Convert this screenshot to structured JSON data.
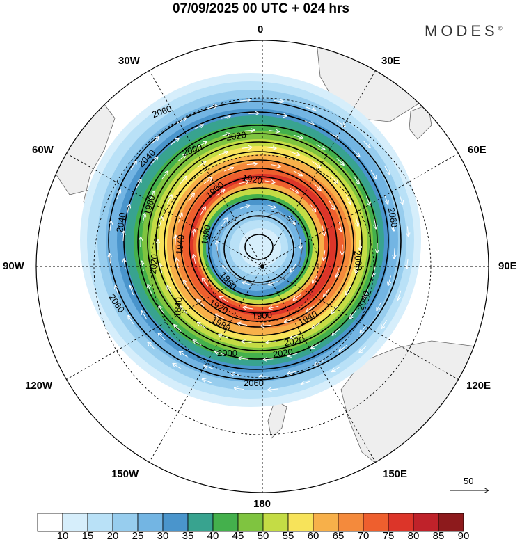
{
  "header": {
    "title": "07/09/2025  00 UTC  + 024 hrs",
    "brand": "MODES"
  },
  "map": {
    "projection": "south polar stereographic",
    "lon_labels": {
      "top": "0",
      "top_left": "30W",
      "top_right": "30E",
      "upper_left": "60W",
      "upper_right": "60E",
      "left": "90W",
      "right": "90E",
      "lower_left": "120W",
      "lower_right": "120E",
      "bottom_left": "150W",
      "bottom_right": "150E",
      "bottom": "180"
    },
    "contour_labels": [
      "2060",
      "2020",
      "2040",
      "2000",
      "1920",
      "1980",
      "1900",
      "2040",
      "1880",
      "1940",
      "1860",
      "2060",
      "2020",
      "2000",
      "1840",
      "2040",
      "2020",
      "1980",
      "1920",
      "1900",
      "1940",
      "2000",
      "2020",
      "2060",
      "2060"
    ]
  },
  "wind_reference": {
    "value": "50"
  },
  "colorbar": {
    "labels": [
      "10",
      "15",
      "20",
      "25",
      "30",
      "35",
      "40",
      "45",
      "50",
      "55",
      "60",
      "65",
      "70",
      "75",
      "80",
      "85",
      "90"
    ],
    "colors": [
      "#ffffff",
      "#d6eefb",
      "#b9e1f7",
      "#97cdee",
      "#73b5e3",
      "#4a95cc",
      "#38a38f",
      "#44b04c",
      "#7fc440",
      "#c4dc45",
      "#f7e35a",
      "#f7b04a",
      "#f48a3c",
      "#ee5f2e",
      "#dc3529",
      "#bf222a",
      "#8d1a1c"
    ]
  }
}
